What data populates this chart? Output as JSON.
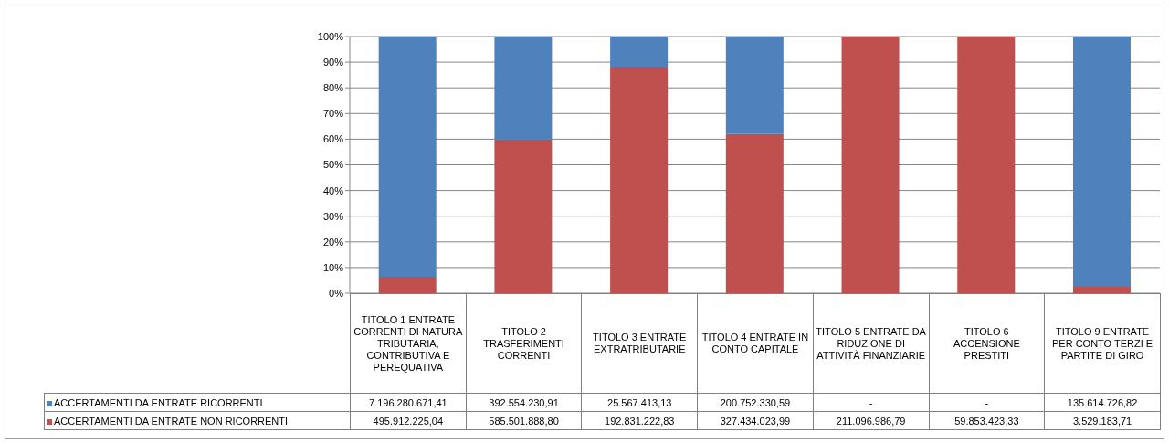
{
  "chart_data": {
    "type": "bar",
    "stacked": true,
    "categories": [
      "TITOLO 1 ENTRATE CORRENTI DI NATURA TRIBUTARIA, CONTRIBUTIVA E PEREQUATIVA",
      "TITOLO 2 TRASFERIMENTI CORRENTI",
      "TITOLO 3 ENTRATE EXTRATRIBUTARIE",
      "TITOLO 4 ENTRATE IN CONTO CAPITALE",
      "TITOLO 5 ENTRATE DA RIDUZIONE DI ATTIVITÀ FINANZIARIE",
      "TITOLO 6 ACCENSIONE PRESTITI",
      "TITOLO 9 ENTRATE PER CONTO TERZI E PARTITE DI GIRO"
    ],
    "series": [
      {
        "name": "ACCERTAMENTI DA ENTRATE NON RICORRENTI",
        "color": "#c0504d",
        "values": [
          6.4,
          59.9,
          88.3,
          62.0,
          100,
          100,
          2.5
        ]
      },
      {
        "name": "ACCERTAMENTI DA ENTRATE RICORRENTI",
        "color": "#4f81bd",
        "values": [
          93.6,
          40.1,
          11.7,
          38.0,
          0,
          0,
          97.5
        ]
      }
    ],
    "annotations": [
      "7.196.280.671,41",
      "392.554.230,91",
      "25.567.413,13",
      "200.752.330,59",
      "-",
      "-",
      "135.614.726,82",
      "495.912.225,04",
      "585.501.888,80",
      "192.831.222,83",
      "327.434.023,99",
      "211.096.986,79",
      "59.853.423,33",
      "3.529.183,71"
    ],
    "ylim": [
      0,
      100
    ],
    "yticks": [
      {
        "value": 0,
        "label": "0%"
      },
      {
        "value": 10,
        "label": "10%"
      },
      {
        "value": 20,
        "label": "20%"
      },
      {
        "value": 30,
        "label": "30%"
      },
      {
        "value": 40,
        "label": "40%"
      },
      {
        "value": 50,
        "label": "50%"
      },
      {
        "value": 60,
        "label": "60%"
      },
      {
        "value": 70,
        "label": "70%"
      },
      {
        "value": 80,
        "label": "80%"
      },
      {
        "value": 90,
        "label": "90%"
      },
      {
        "value": 100,
        "label": "100%"
      }
    ],
    "grid": "y",
    "legend": "bottom"
  }
}
